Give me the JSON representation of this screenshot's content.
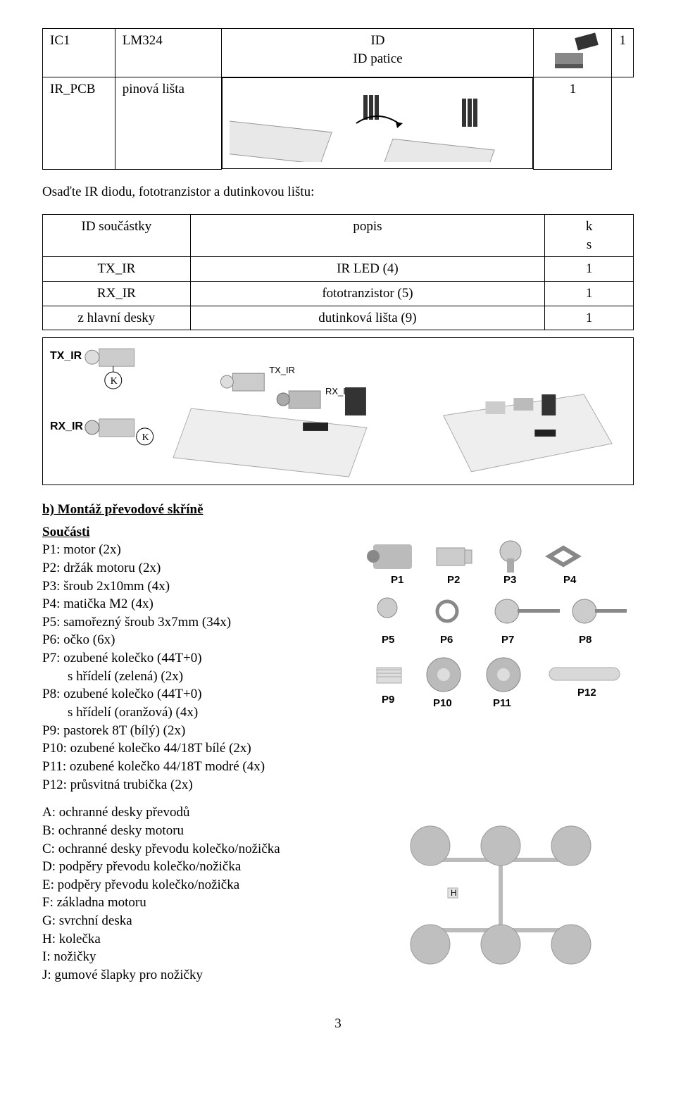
{
  "table1": {
    "rows": [
      {
        "c0": "IC1",
        "c1": "LM324",
        "c2_top": "ID",
        "c2_bot": "ID patice",
        "c3": "1"
      },
      {
        "c0": "IR_PCB",
        "c1": "pinová lišta",
        "c2_top": "",
        "c2_bot": "",
        "c3": "1"
      }
    ]
  },
  "afterTable1Caption": "Osaďte IR diodu, fototranzistor a dutinkovou lištu:",
  "table2": {
    "headers": [
      "ID součástky",
      "popis",
      "k\ns"
    ],
    "rows": [
      {
        "c0": "TX_IR",
        "c1": "IR LED (4)",
        "c2": "1"
      },
      {
        "c0": "RX_IR",
        "c1": "fototranzistor (5)",
        "c2": "1"
      },
      {
        "c0": "z hlavní desky",
        "c1": "dutinková lišta (9)",
        "c2": "1"
      }
    ]
  },
  "sectionB_title": "b) Montáž převodové skříně",
  "parts_heading": "Součásti",
  "parts": [
    "P1: motor (2x)",
    "P2: držák motoru (2x)",
    "P3: šroub 2x10mm (4x)",
    "P4: matička M2 (4x)",
    "P5: samořezný šroub 3x7mm (34x)",
    "P6: očko (6x)",
    "P7: ozubené kolečko (44T+0)",
    "      s hřídelí (zelená) (2x)",
    "P8: ozubené kolečko (44T+0)",
    "      s hřídelí (oranžová) (4x)",
    "P9: pastorek 8T (bílý) (2x)",
    "P10: ozubené kolečko 44/18T bílé (2x)",
    "P11: ozubené kolečko 44/18T modré (4x)",
    "P12: průsvitná trubička (2x)"
  ],
  "letters": [
    "A: ochranné desky převodů",
    "B: ochranné desky motoru",
    "C: ochranné desky převodu kolečko/nožička",
    "D: podpěry převodu kolečko/nožička",
    "E: podpěry převodu kolečko/nožička",
    "F: základna motoru",
    "G: svrchní deska",
    "H: kolečka",
    "I: nožičky",
    "J: gumové šlapky pro nožičky"
  ],
  "partLabels": [
    "P1",
    "P2",
    "P3",
    "P4",
    "P5",
    "P6",
    "P7",
    "P8",
    "P9",
    "P10",
    "P11",
    "P12"
  ],
  "hLabel": "H",
  "pageNumber": "3",
  "colors": {
    "text": "#000000",
    "gray": "#bfbfbf",
    "lightgray": "#e5e5e5",
    "white": "#ffffff"
  }
}
